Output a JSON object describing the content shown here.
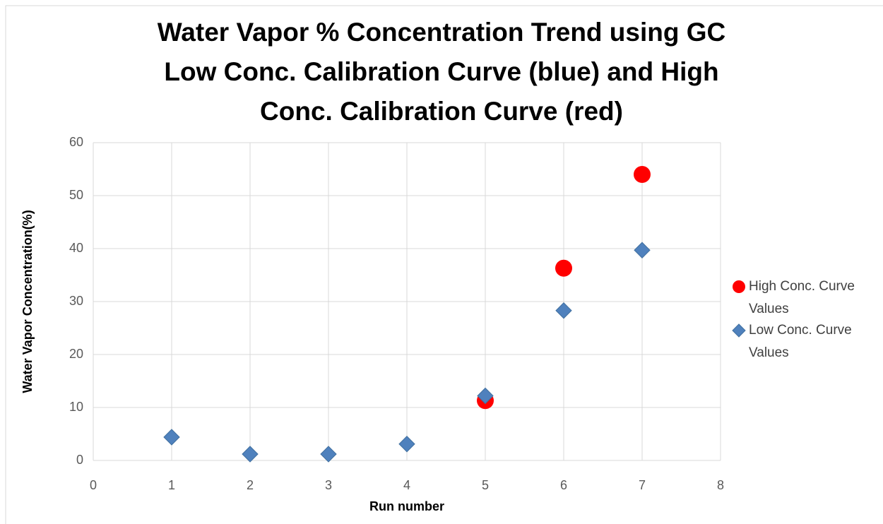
{
  "chart_data": {
    "type": "scatter",
    "title": [
      "Water Vapor % Concentration Trend using GC",
      "Low Conc. Calibration Curve (blue) and High",
      "Conc. Calibration Curve (red)"
    ],
    "x_label": "Run number",
    "y_label": "Water Vapor Concentration(%)",
    "series": [
      {
        "name": "High Conc. Curve Values",
        "color": "#ff0000",
        "marker": "circle",
        "x": [
          5,
          6,
          7
        ],
        "values": [
          11.3,
          36.3,
          54
        ]
      },
      {
        "name": "Low Conc. Curve Values",
        "color": "#4f81bd",
        "marker": "diamond",
        "x": [
          1,
          2,
          3,
          4,
          5,
          6,
          7
        ],
        "values": [
          4.4,
          1.2,
          1.2,
          3.1,
          12.2,
          28.3,
          39.7
        ]
      }
    ],
    "xlim": [
      0,
      8
    ],
    "xticks": [
      0,
      1,
      2,
      3,
      4,
      5,
      6,
      7,
      8
    ],
    "ylim": [
      0,
      60
    ],
    "yticks": [
      0,
      10,
      20,
      30,
      40,
      50,
      60
    ],
    "grid": true,
    "legend": "right"
  }
}
